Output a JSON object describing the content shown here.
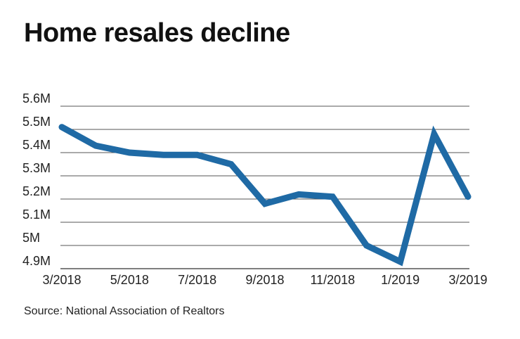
{
  "title": "Home resales decline",
  "source": "Source: National Association of Realtors",
  "colors": {
    "line": "#1f6aa5",
    "grid": "#555555"
  },
  "chart_data": {
    "type": "line",
    "title": "Home resales decline",
    "xlabel": "",
    "ylabel": "",
    "x": [
      "3/2018",
      "4/2018",
      "5/2018",
      "6/2018",
      "7/2018",
      "8/2018",
      "9/2018",
      "10/2018",
      "11/2018",
      "12/2018",
      "1/2019",
      "2/2019",
      "3/2019"
    ],
    "x_tick_labels": [
      "3/2018",
      "5/2018",
      "7/2018",
      "9/2018",
      "11/2018",
      "1/2019",
      "3/2019"
    ],
    "y_tick_values": [
      4.9,
      5.0,
      5.1,
      5.2,
      5.3,
      5.4,
      5.5,
      5.6
    ],
    "y_tick_labels": [
      "4.9M",
      "5M",
      "5.1M",
      "5.2M",
      "5.3M",
      "5.4M",
      "5.5M",
      "5.6M"
    ],
    "ylim": [
      4.9,
      5.6
    ],
    "grid": true,
    "legend": "none",
    "series": [
      {
        "values": [
          5.51,
          5.43,
          5.4,
          5.39,
          5.39,
          5.35,
          5.18,
          5.22,
          5.21,
          5.0,
          4.93,
          5.48,
          5.21
        ]
      }
    ]
  }
}
